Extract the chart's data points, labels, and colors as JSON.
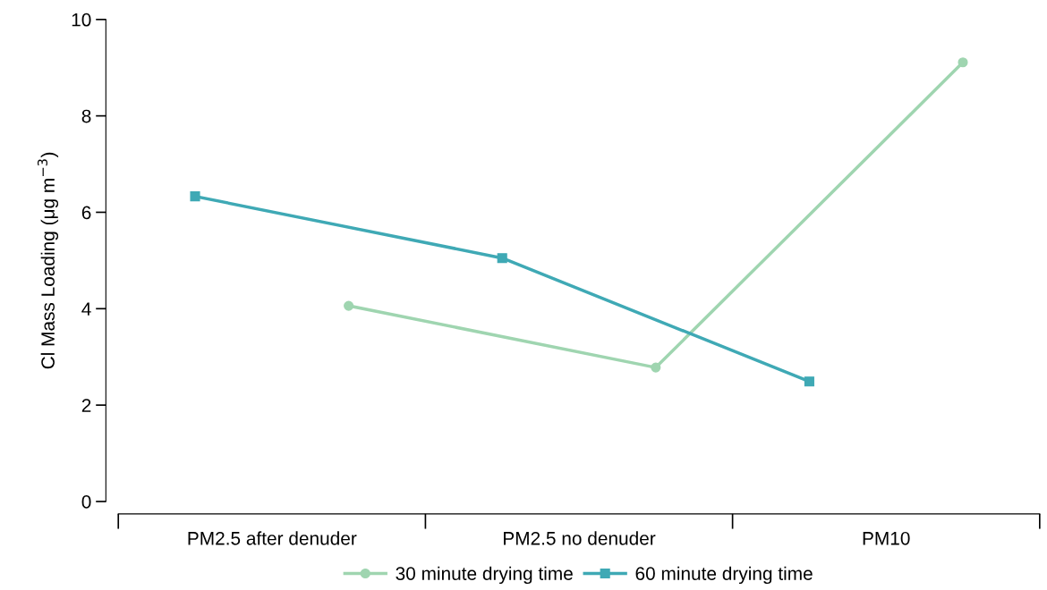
{
  "chart_data": {
    "type": "line",
    "ylabel": "Cl Mass Loading (μg m$^{−3}$)",
    "categories": [
      "PM2.5 after denuder",
      "PM2.5 no denuder",
      "PM10"
    ],
    "series": [
      {
        "name": "30 minute drying time",
        "color": "#9fd5b0",
        "marker": "circle",
        "values": [
          4.06,
          2.78,
          9.11
        ]
      },
      {
        "name": "60 minute drying time",
        "color": "#3fa9b5",
        "marker": "square",
        "values": [
          6.33,
          5.05,
          2.49
        ]
      }
    ],
    "ylim": [
      0,
      10
    ],
    "yticks": [
      0,
      2,
      4,
      6,
      8,
      10
    ],
    "grid": false,
    "legend": "bottom",
    "line_style": "solid"
  }
}
